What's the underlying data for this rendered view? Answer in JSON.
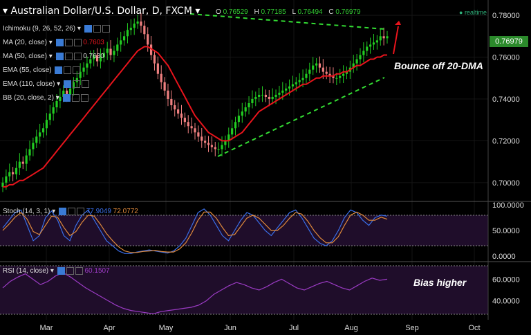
{
  "header": {
    "title": "Australian Dollar/U.S. Dollar, D, FXCM",
    "o_label": "O",
    "o": "0.76529",
    "h_label": "H",
    "h": "0.77185",
    "l_label": "L",
    "l": "0.76494",
    "c_label": "C",
    "c": "0.76979",
    "realtime": "realtime"
  },
  "indicators": [
    {
      "label": "Ichimoku (9, 26, 52, 26)"
    },
    {
      "label": "MA (20, close)",
      "value": "0.7603"
    },
    {
      "label": "MA (50, close)",
      "value": "0.7630"
    },
    {
      "label": "EMA (55, close)"
    },
    {
      "label": "EMA (110, close)"
    },
    {
      "label": "BB (20, close, 2)"
    }
  ],
  "stoch": {
    "label": "Stoch (14, 3, 1)",
    "k": "77.9049",
    "d": "72.0772"
  },
  "rsi": {
    "label": "RSI (14, close)",
    "value": "60.1507"
  },
  "last_price": "0.76979",
  "annotations": {
    "bounce": "Bounce off 20-DMA",
    "bias": "Bias higher"
  },
  "colors": {
    "up": "#22cc22",
    "down": "#f08080",
    "ma": "#e8141c",
    "trend": "#33dd33",
    "stoch_k": "#3a6ee8",
    "stoch_d": "#e08a3c",
    "rsi": "#9b3bc4",
    "subpanel_bg": "#1f0d2a"
  },
  "chart_data": [
    {
      "type": "candlestick",
      "title": "Australian Dollar/U.S. Dollar, D, FXCM",
      "x_labels": [
        "Mar",
        "Apr",
        "May",
        "Jun",
        "Jul",
        "Aug",
        "Sep",
        "Oct"
      ],
      "y_ticks": [
        "0.70000",
        "0.72000",
        "0.74000",
        "0.76000",
        "0.78000"
      ],
      "ylim": [
        0.693,
        0.784
      ],
      "closes": [
        0.7,
        0.703,
        0.705,
        0.704,
        0.707,
        0.71,
        0.709,
        0.713,
        0.716,
        0.719,
        0.722,
        0.724,
        0.726,
        0.73,
        0.733,
        0.736,
        0.739,
        0.741,
        0.744,
        0.742,
        0.745,
        0.748,
        0.75,
        0.753,
        0.755,
        0.757,
        0.759,
        0.761,
        0.758,
        0.76,
        0.762,
        0.764,
        0.761,
        0.763,
        0.766,
        0.768,
        0.77,
        0.773,
        0.774,
        0.776,
        0.777,
        0.775,
        0.771,
        0.766,
        0.761,
        0.757,
        0.752,
        0.748,
        0.744,
        0.74,
        0.737,
        0.735,
        0.733,
        0.731,
        0.729,
        0.727,
        0.726,
        0.724,
        0.722,
        0.72,
        0.719,
        0.718,
        0.717,
        0.716,
        0.716,
        0.718,
        0.72,
        0.723,
        0.726,
        0.729,
        0.732,
        0.734,
        0.736,
        0.738,
        0.74,
        0.741,
        0.742,
        0.742,
        0.741,
        0.74,
        0.741,
        0.742,
        0.743,
        0.744,
        0.745,
        0.746,
        0.747,
        0.748,
        0.749,
        0.75,
        0.752,
        0.754,
        0.756,
        0.757,
        0.755,
        0.753,
        0.752,
        0.751,
        0.75,
        0.75,
        0.751,
        0.752,
        0.753,
        0.755,
        0.757,
        0.759,
        0.761,
        0.763,
        0.765,
        0.766,
        0.767,
        0.768,
        0.77,
        0.769,
        0.77
      ],
      "ma20": [
        0.698,
        0.698,
        0.699,
        0.699,
        0.7,
        0.701,
        0.701,
        0.702,
        0.703,
        0.704,
        0.705,
        0.706,
        0.707,
        0.709,
        0.711,
        0.713,
        0.715,
        0.717,
        0.719,
        0.721,
        0.723,
        0.725,
        0.727,
        0.729,
        0.731,
        0.733,
        0.735,
        0.737,
        0.739,
        0.741,
        0.743,
        0.745,
        0.747,
        0.749,
        0.751,
        0.753,
        0.755,
        0.757,
        0.759,
        0.761,
        0.763,
        0.764,
        0.765,
        0.765,
        0.764,
        0.763,
        0.762,
        0.76,
        0.758,
        0.756,
        0.753,
        0.75,
        0.747,
        0.744,
        0.741,
        0.738,
        0.735,
        0.732,
        0.73,
        0.728,
        0.726,
        0.724,
        0.723,
        0.722,
        0.721,
        0.72,
        0.72,
        0.72,
        0.721,
        0.722,
        0.723,
        0.724,
        0.726,
        0.728,
        0.73,
        0.732,
        0.734,
        0.735,
        0.736,
        0.737,
        0.738,
        0.739,
        0.74,
        0.741,
        0.742,
        0.743,
        0.744,
        0.745,
        0.746,
        0.747,
        0.747,
        0.748,
        0.749,
        0.75,
        0.75,
        0.751,
        0.751,
        0.751,
        0.751,
        0.752,
        0.752,
        0.753,
        0.753,
        0.754,
        0.755,
        0.756,
        0.756,
        0.757,
        0.758,
        0.759,
        0.759,
        0.76,
        0.76,
        0.761,
        0.761
      ]
    },
    {
      "type": "line",
      "title": "Stoch (14, 3, 1)",
      "y_ticks": [
        "0.0000",
        "50.0000",
        "100.0000"
      ],
      "ylim": [
        0,
        100
      ],
      "series": [
        {
          "name": "77.9049",
          "values": [
            55,
            70,
            85,
            90,
            60,
            30,
            40,
            75,
            88,
            70,
            40,
            30,
            60,
            80,
            90,
            70,
            50,
            30,
            20,
            10,
            5,
            5,
            8,
            10,
            12,
            10,
            8,
            6,
            10,
            20,
            35,
            60,
            85,
            92,
            80,
            60,
            40,
            30,
            50,
            70,
            85,
            80,
            65,
            50,
            40,
            55,
            70,
            85,
            90,
            75,
            55,
            35,
            25,
            20,
            30,
            50,
            75,
            90,
            85,
            70,
            60,
            75,
            80,
            78
          ]
        },
        {
          "name": "72.0772",
          "values": [
            50,
            62,
            76,
            85,
            72,
            48,
            42,
            60,
            78,
            76,
            56,
            40,
            48,
            66,
            80,
            78,
            62,
            44,
            30,
            18,
            10,
            7,
            7,
            9,
            10,
            11,
            9,
            8,
            8,
            14,
            26,
            46,
            70,
            86,
            86,
            74,
            56,
            40,
            42,
            58,
            74,
            80,
            74,
            62,
            50,
            50,
            60,
            74,
            85,
            82,
            68,
            50,
            36,
            26,
            26,
            38,
            60,
            80,
            86,
            80,
            70,
            70,
            76,
            72
          ]
        }
      ]
    },
    {
      "type": "line",
      "title": "RSI (14, close)",
      "y_ticks": [
        "40.0000",
        "60.0000"
      ],
      "ylim": [
        25,
        75
      ],
      "series": [
        {
          "name": "60.1507",
          "values": [
            52,
            58,
            62,
            65,
            60,
            55,
            58,
            63,
            66,
            62,
            57,
            52,
            48,
            44,
            40,
            36,
            33,
            31,
            30,
            29,
            28,
            30,
            31,
            32,
            33,
            34,
            36,
            40,
            46,
            50,
            54,
            57,
            55,
            52,
            50,
            53,
            57,
            60,
            56,
            52,
            50,
            53,
            56,
            58,
            55,
            52,
            50,
            54,
            58,
            61,
            59,
            60
          ]
        }
      ]
    }
  ]
}
